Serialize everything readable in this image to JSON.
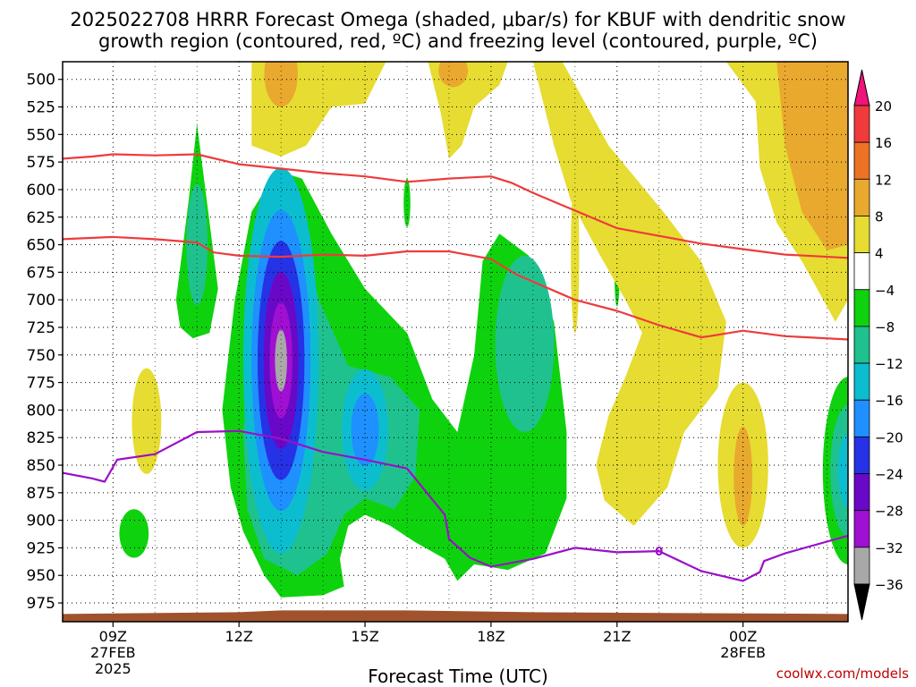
{
  "chart_data": {
    "type": "heatmap",
    "title_line1": "2025022708 HRRR Forecast Omega (shaded, μbar/s) for KBUF with dendritic snow",
    "title_line2": "growth region (contoured, red, ºC) and freezing level (contoured, purple, ºC)",
    "xlabel": "Forecast Time (UTC)",
    "credit": "coolwx.com/models",
    "x_range_hours": [
      7.8,
      26.5
    ],
    "x_ticks": [
      {
        "hour": 9,
        "lines": [
          "09Z",
          "27FEB",
          "2025"
        ]
      },
      {
        "hour": 12,
        "lines": [
          "12Z"
        ]
      },
      {
        "hour": 15,
        "lines": [
          "15Z"
        ]
      },
      {
        "hour": 18,
        "lines": [
          "18Z"
        ]
      },
      {
        "hour": 21,
        "lines": [
          "21Z"
        ]
      },
      {
        "hour": 24,
        "lines": [
          "00Z",
          "28FEB"
        ]
      }
    ],
    "y_range_hpa": [
      484,
      992
    ],
    "y_ticks": [
      500,
      525,
      550,
      575,
      600,
      625,
      650,
      675,
      700,
      725,
      750,
      775,
      800,
      825,
      850,
      875,
      900,
      925,
      950,
      975
    ],
    "grid": true,
    "colorbar": {
      "position": "right",
      "labels": [
        "20",
        "16",
        "12",
        "8",
        "4",
        "−4",
        "−8",
        "−12",
        "−16",
        "−20",
        "−24",
        "−28",
        "−32",
        "−36"
      ],
      "bins": [
        {
          "range": [
            20,
            24
          ],
          "color": "#f0147a"
        },
        {
          "range": [
            16,
            20
          ],
          "color": "#ef3b3b"
        },
        {
          "range": [
            12,
            16
          ],
          "color": "#ee7226"
        },
        {
          "range": [
            8,
            12
          ],
          "color": "#e9a92e"
        },
        {
          "range": [
            4,
            8
          ],
          "color": "#e6dc32"
        },
        {
          "range": [
            -4,
            4
          ],
          "color": "#ffffff"
        },
        {
          "range": [
            -8,
            -4
          ],
          "color": "#0ed20e"
        },
        {
          "range": [
            -12,
            -8
          ],
          "color": "#1fc28e"
        },
        {
          "range": [
            -16,
            -12
          ],
          "color": "#0cbdd0"
        },
        {
          "range": [
            -20,
            -16
          ],
          "color": "#1e90ff"
        },
        {
          "range": [
            -24,
            -20
          ],
          "color": "#2532e6"
        },
        {
          "range": [
            -28,
            -24
          ],
          "color": "#6a08c8"
        },
        {
          "range": [
            -32,
            -28
          ],
          "color": "#a010d2"
        },
        {
          "range": [
            -36,
            -32
          ],
          "color": "#a8a8a8"
        },
        {
          "range": [
            -40,
            -36
          ],
          "color": "#000000"
        }
      ]
    },
    "dgz_top_isotherm": [
      [
        7.8,
        572
      ],
      [
        8.5,
        570
      ],
      [
        9,
        568
      ],
      [
        10,
        569
      ],
      [
        11,
        568
      ],
      [
        12,
        577
      ],
      [
        13,
        581
      ],
      [
        14,
        585
      ],
      [
        15,
        588
      ],
      [
        16,
        593
      ],
      [
        17,
        590
      ],
      [
        18,
        588
      ],
      [
        18.5,
        594
      ],
      [
        19,
        603
      ],
      [
        20,
        619
      ],
      [
        21,
        635
      ],
      [
        22,
        642
      ],
      [
        23,
        649
      ],
      [
        24,
        654
      ],
      [
        25,
        659
      ],
      [
        26.5,
        662
      ]
    ],
    "dgz_bottom_isotherm": [
      [
        7.8,
        645
      ],
      [
        9,
        643
      ],
      [
        10,
        645
      ],
      [
        11,
        648
      ],
      [
        11.4,
        657
      ],
      [
        12,
        660
      ],
      [
        13,
        661
      ],
      [
        14,
        659
      ],
      [
        15,
        660
      ],
      [
        16,
        656
      ],
      [
        17,
        656
      ],
      [
        18,
        663
      ],
      [
        18.6,
        677
      ],
      [
        20,
        700
      ],
      [
        21,
        710
      ],
      [
        22,
        723
      ],
      [
        23,
        734
      ],
      [
        23.2,
        733
      ],
      [
        24,
        728
      ],
      [
        25,
        733
      ],
      [
        26.5,
        736
      ]
    ],
    "freezing_level": [
      [
        7.8,
        857
      ],
      [
        8.5,
        862
      ],
      [
        8.8,
        865
      ],
      [
        9.1,
        845
      ],
      [
        10,
        840
      ],
      [
        11,
        820
      ],
      [
        12,
        819
      ],
      [
        13,
        826
      ],
      [
        14,
        838
      ],
      [
        15,
        845
      ],
      [
        16,
        853
      ],
      [
        16.9,
        895
      ],
      [
        17,
        917
      ],
      [
        17.5,
        934
      ],
      [
        18,
        942
      ],
      [
        19,
        935
      ],
      [
        20,
        925
      ],
      [
        21,
        929
      ],
      [
        22,
        928
      ],
      [
        23,
        946
      ],
      [
        24,
        955
      ],
      [
        24.4,
        947
      ],
      [
        24.5,
        937
      ],
      [
        25,
        930
      ],
      [
        26.5,
        914
      ]
    ],
    "freezing_level_label": "0",
    "terrain_surface_hpa": 985
  }
}
